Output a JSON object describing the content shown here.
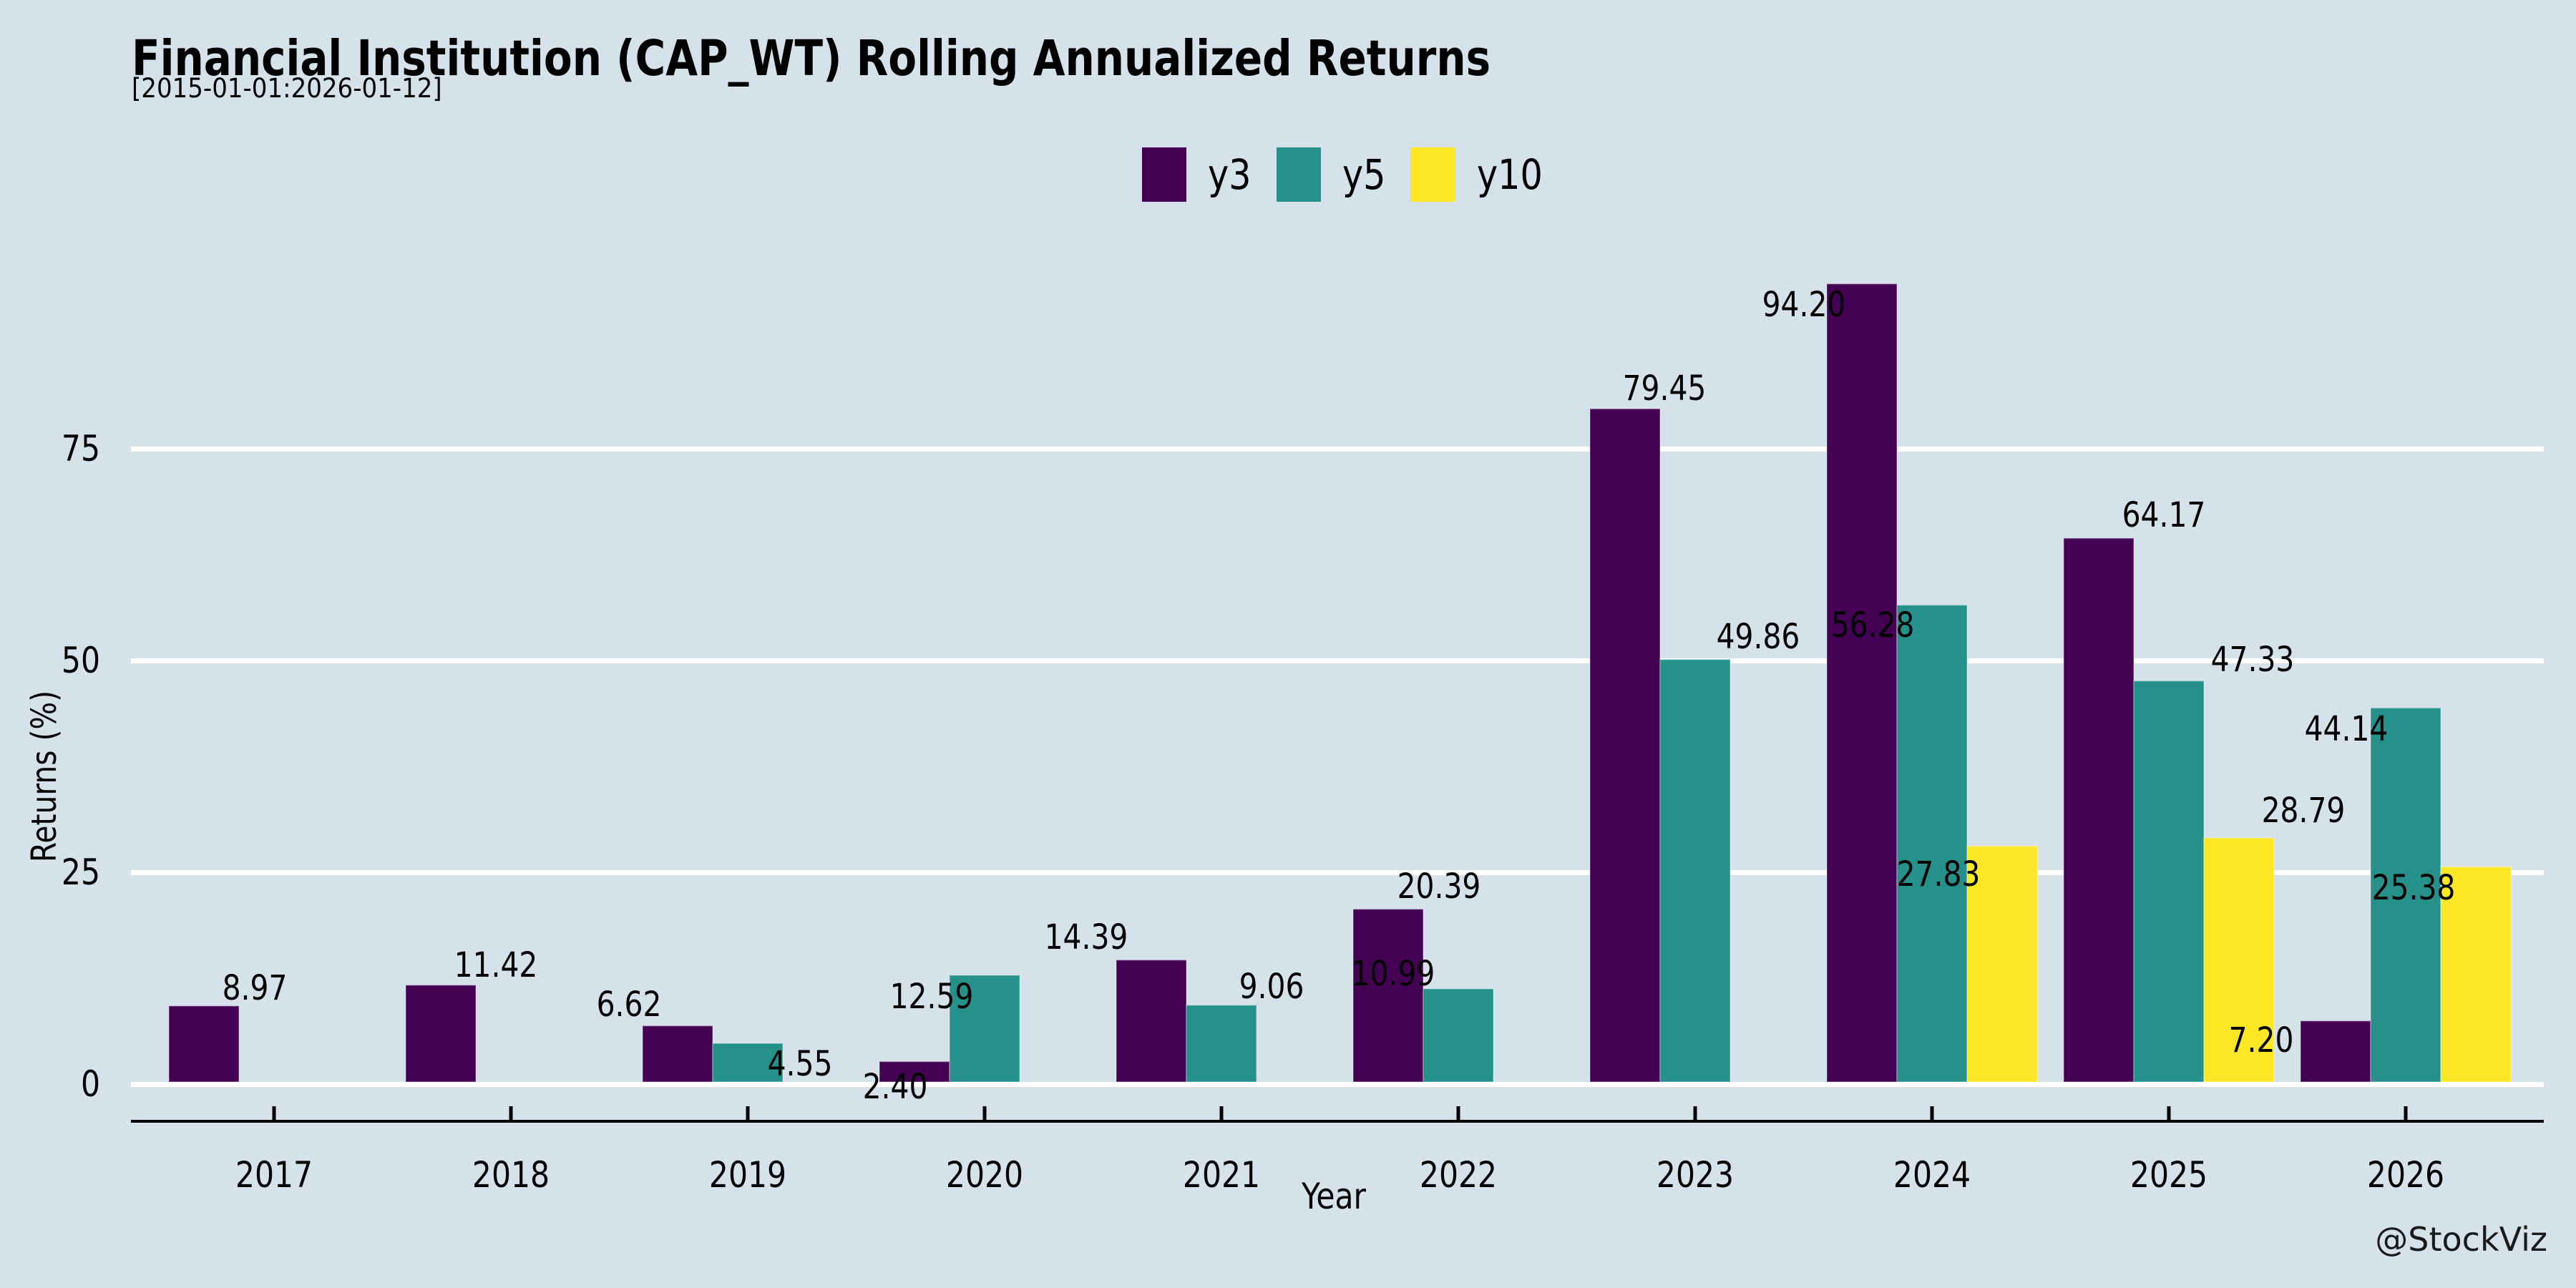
{
  "title": "Financial Institution (CAP_WT) Rolling Annualized Returns",
  "subtitle": "[2015-01-01:2026-01-12]",
  "watermark": "@StockViz",
  "colors": {
    "background": "#d5e2e9",
    "gridline": "#ffffff",
    "axis": "#000000",
    "text": "#000000",
    "watermark": "#1a1a1a"
  },
  "chart_data": {
    "type": "bar",
    "title": "Financial Institution (CAP_WT) Rolling Annualized Returns",
    "subtitle": "[2015-01-01:2026-01-12]",
    "xlabel": "Year",
    "ylabel": "Returns (%)",
    "categories": [
      "2017",
      "2018",
      "2019",
      "2020",
      "2021",
      "2022",
      "2023",
      "2024",
      "2025",
      "2026"
    ],
    "series": [
      {
        "name": "y3",
        "color": "#440154",
        "values": [
          8.97,
          11.42,
          6.62,
          2.4,
          14.39,
          20.39,
          79.45,
          94.2,
          64.17,
          7.2
        ]
      },
      {
        "name": "y5",
        "color": "#26908b",
        "values": [
          null,
          null,
          4.55,
          12.59,
          9.06,
          10.99,
          49.86,
          56.28,
          47.33,
          44.14
        ]
      },
      {
        "name": "y10",
        "color": "#fde725",
        "values": [
          null,
          null,
          null,
          null,
          null,
          null,
          null,
          27.83,
          28.79,
          25.38
        ]
      }
    ],
    "yticks": [
      0,
      25,
      50,
      75
    ],
    "ylim": [
      0,
      113
    ],
    "grid": "horizontal-white",
    "legend_position": "top-center",
    "value_labels": true,
    "label_format": "0.00"
  }
}
